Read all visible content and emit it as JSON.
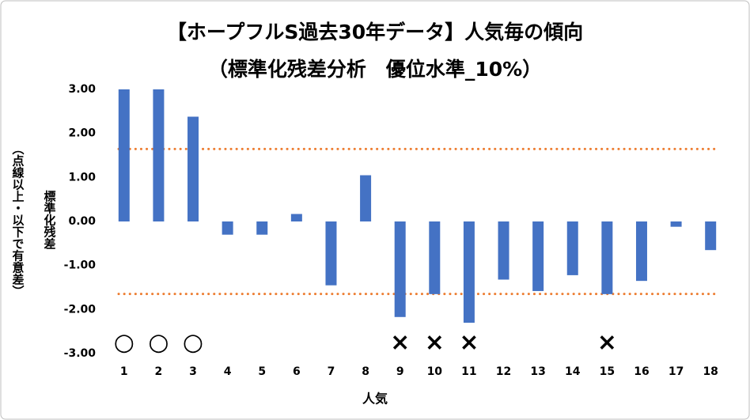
{
  "chart_data": {
    "type": "bar",
    "title": "【ホープフルS過去30年データ】人気毎の傾向",
    "subtitle": "（標準化残差分析　優位水準_10%）",
    "y_label": "標準化残差",
    "y_label_note": "（点線以上・以下で有意差）",
    "x_label": "人気",
    "categories": [
      "1",
      "2",
      "3",
      "4",
      "5",
      "6",
      "7",
      "8",
      "9",
      "10",
      "11",
      "12",
      "13",
      "14",
      "15",
      "16",
      "17",
      "18"
    ],
    "values": [
      3.0,
      3.0,
      2.38,
      -0.3,
      -0.3,
      0.17,
      -1.45,
      1.05,
      -2.17,
      -1.65,
      -2.3,
      -1.32,
      -1.58,
      -1.22,
      -1.65,
      -1.35,
      -0.12,
      -0.65
    ],
    "color": "#4472c4",
    "significance": [
      "○",
      "○",
      "○",
      null,
      null,
      null,
      null,
      null,
      "×",
      "×",
      "×",
      null,
      null,
      null,
      "×",
      null,
      null,
      null
    ],
    "reference_lines": [
      1.645,
      -1.645
    ],
    "reference_color": "#ed7d31",
    "ylim": [
      -3,
      3
    ],
    "yticks": [
      {
        "value": 3,
        "label": "3.00"
      },
      {
        "value": 2,
        "label": "2.00"
      },
      {
        "value": 1,
        "label": "1.00"
      },
      {
        "value": 0,
        "label": "0.00"
      },
      {
        "value": -1,
        "label": "-1.00"
      },
      {
        "value": -2,
        "label": "-2.00"
      },
      {
        "value": -3,
        "label": "-3.00"
      }
    ],
    "grid": false
  }
}
